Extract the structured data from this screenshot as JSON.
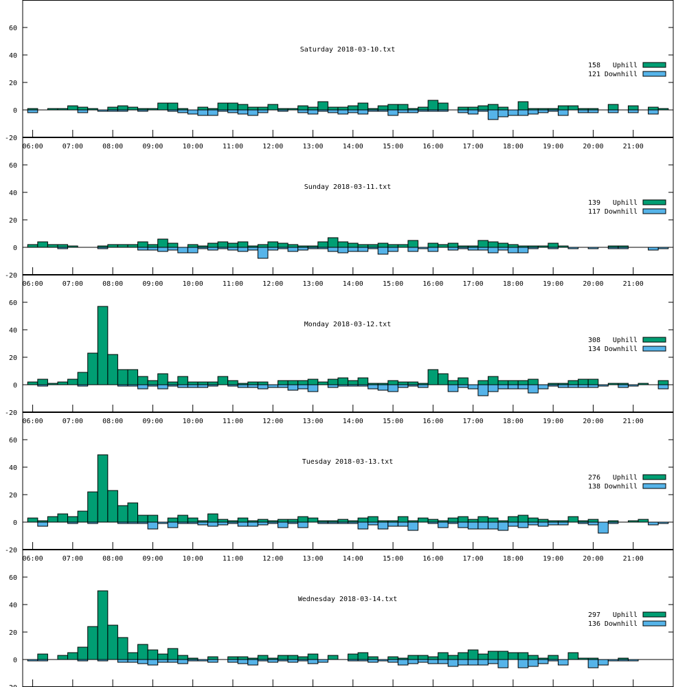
{
  "chart_data": {
    "type": "bar",
    "xlim": [
      "05:45",
      "22:00"
    ],
    "ylim": [
      -20,
      80
    ],
    "yticks": [
      -20,
      0,
      20,
      40,
      60
    ],
    "xticks": [
      "06:00",
      "07:00",
      "08:00",
      "09:00",
      "10:00",
      "11:00",
      "12:00",
      "13:00",
      "14:00",
      "15:00",
      "16:00",
      "17:00",
      "18:00",
      "19:00",
      "20:00",
      "21:00"
    ],
    "x": [
      "06:00",
      "06:15",
      "06:30",
      "06:45",
      "07:00",
      "07:15",
      "07:30",
      "07:45",
      "08:00",
      "08:15",
      "08:30",
      "08:45",
      "09:00",
      "09:15",
      "09:30",
      "09:45",
      "10:00",
      "10:15",
      "10:30",
      "10:45",
      "11:00",
      "11:15",
      "11:30",
      "11:45",
      "12:00",
      "12:15",
      "12:30",
      "12:45",
      "13:00",
      "13:15",
      "13:30",
      "13:45",
      "14:00",
      "14:15",
      "14:30",
      "14:45",
      "15:00",
      "15:15",
      "15:30",
      "15:45",
      "16:00",
      "16:15",
      "16:30",
      "16:45",
      "17:00",
      "17:15",
      "17:30",
      "17:45",
      "18:00",
      "18:15",
      "18:30",
      "18:45",
      "19:00",
      "19:15",
      "19:30",
      "19:45",
      "20:00",
      "20:15",
      "20:30",
      "20:45",
      "21:00",
      "21:15",
      "21:30",
      "21:45"
    ],
    "grid": false,
    "legend_placement": "right",
    "colors": {
      "Uphill": "#009e73",
      "Downhill": "#56b4e9"
    },
    "panels": [
      {
        "title": "Saturday 2018-03-10.txt",
        "series": [
          {
            "name": "Uphill",
            "total": "158",
            "values": [
              1,
              0,
              1,
              1,
              3,
              2,
              1,
              0,
              2,
              3,
              2,
              1,
              1,
              5,
              5,
              1,
              0,
              2,
              1,
              5,
              5,
              4,
              2,
              2,
              4,
              1,
              1,
              3,
              2,
              6,
              2,
              2,
              3,
              5,
              1,
              3,
              4,
              4,
              1,
              2,
              7,
              5,
              0,
              2,
              2,
              3,
              4,
              2,
              0,
              6,
              1,
              1,
              1,
              3,
              3,
              1,
              1,
              0,
              4,
              0,
              3,
              0,
              2,
              1
            ]
          },
          {
            "name": "Downhill",
            "total": "121",
            "values": [
              -2,
              0,
              0,
              0,
              0,
              -2,
              0,
              -1,
              -1,
              -1,
              0,
              -1,
              0,
              0,
              -1,
              -2,
              -3,
              -4,
              -4,
              -1,
              -2,
              -3,
              -4,
              -2,
              0,
              -1,
              0,
              -2,
              -3,
              -1,
              -2,
              -3,
              -2,
              -3,
              -1,
              -1,
              -4,
              -2,
              -2,
              -1,
              -1,
              -1,
              0,
              -2,
              -3,
              -1,
              -7,
              -5,
              -4,
              -4,
              -3,
              -2,
              -1,
              -4,
              0,
              -2,
              -2,
              0,
              -2,
              0,
              -2,
              0,
              -3,
              0
            ]
          }
        ]
      },
      {
        "title": "Sunday 2018-03-11.txt",
        "series": [
          {
            "name": "Uphill",
            "total": "139",
            "values": [
              2,
              4,
              2,
              2,
              1,
              0,
              0,
              1,
              2,
              2,
              2,
              4,
              2,
              6,
              3,
              0,
              2,
              1,
              3,
              4,
              3,
              4,
              1,
              2,
              4,
              3,
              2,
              1,
              1,
              4,
              7,
              4,
              3,
              2,
              2,
              3,
              2,
              2,
              5,
              0,
              3,
              2,
              3,
              1,
              1,
              5,
              4,
              3,
              2,
              1,
              1,
              1,
              3,
              1,
              0,
              0,
              0,
              0,
              1,
              1,
              0,
              0,
              0,
              0
            ]
          },
          {
            "name": "Downhill",
            "total": "117",
            "values": [
              0,
              0,
              0,
              -1,
              0,
              0,
              0,
              -1,
              0,
              0,
              0,
              -2,
              -2,
              -3,
              -2,
              -4,
              -4,
              -1,
              -2,
              -1,
              -2,
              -3,
              -2,
              -8,
              -2,
              -1,
              -3,
              -2,
              -1,
              -1,
              -3,
              -4,
              -3,
              -3,
              -1,
              -5,
              -3,
              0,
              -3,
              -1,
              -3,
              0,
              -2,
              -1,
              -2,
              -2,
              -4,
              -2,
              -4,
              -4,
              -1,
              0,
              -1,
              0,
              -1,
              0,
              -1,
              0,
              -1,
              -1,
              0,
              0,
              -2,
              -1
            ]
          }
        ]
      },
      {
        "title": "Monday 2018-03-12.txt",
        "series": [
          {
            "name": "Uphill",
            "total": "308",
            "values": [
              2,
              4,
              1,
              2,
              4,
              9,
              23,
              57,
              22,
              11,
              11,
              6,
              3,
              8,
              2,
              6,
              2,
              2,
              2,
              6,
              3,
              1,
              2,
              2,
              0,
              3,
              3,
              3,
              4,
              2,
              4,
              5,
              3,
              5,
              1,
              1,
              3,
              2,
              2,
              1,
              11,
              8,
              3,
              5,
              0,
              3,
              6,
              3,
              3,
              3,
              4,
              0,
              1,
              1,
              3,
              4,
              4,
              0,
              1,
              1,
              0,
              1,
              0,
              3
            ]
          },
          {
            "name": "Downhill",
            "total": "134",
            "values": [
              0,
              -1,
              0,
              0,
              0,
              -1,
              0,
              0,
              0,
              -1,
              -1,
              -3,
              -1,
              -3,
              -1,
              -2,
              -2,
              -2,
              -1,
              0,
              -1,
              -2,
              -2,
              -3,
              -2,
              -2,
              -4,
              -3,
              -5,
              0,
              -2,
              -1,
              -1,
              -1,
              -3,
              -4,
              -5,
              -2,
              -1,
              -2,
              0,
              0,
              -5,
              -2,
              -3,
              -8,
              -5,
              -3,
              -3,
              -3,
              -6,
              -3,
              -1,
              -2,
              -2,
              -2,
              -2,
              -1,
              0,
              -2,
              -1,
              0,
              0,
              -3
            ]
          }
        ]
      },
      {
        "title": "Tuesday 2018-03-13.txt",
        "series": [
          {
            "name": "Uphill",
            "total": "276",
            "values": [
              3,
              1,
              4,
              6,
              4,
              8,
              22,
              49,
              23,
              12,
              14,
              5,
              5,
              0,
              3,
              5,
              3,
              1,
              6,
              2,
              1,
              3,
              1,
              2,
              1,
              2,
              2,
              4,
              3,
              1,
              1,
              2,
              1,
              3,
              4,
              1,
              1,
              4,
              1,
              3,
              2,
              1,
              3,
              4,
              2,
              4,
              3,
              1,
              4,
              5,
              3,
              2,
              1,
              1,
              4,
              1,
              2,
              0,
              1,
              0,
              1,
              2,
              0,
              0
            ]
          },
          {
            "name": "Downhill",
            "total": "138",
            "values": [
              0,
              -3,
              0,
              0,
              -1,
              0,
              -1,
              0,
              0,
              -1,
              -1,
              -1,
              -5,
              -1,
              -4,
              -1,
              -1,
              -2,
              -3,
              -2,
              -1,
              -3,
              -3,
              -2,
              -1,
              -4,
              -1,
              -4,
              0,
              -1,
              -1,
              -1,
              -1,
              -5,
              -2,
              -5,
              -3,
              -3,
              -6,
              0,
              -1,
              -4,
              -1,
              -4,
              -5,
              -5,
              -5,
              -6,
              -3,
              -4,
              -2,
              -3,
              -2,
              -2,
              0,
              -1,
              -2,
              -8,
              -1,
              0,
              0,
              0,
              -2,
              -1
            ]
          }
        ]
      },
      {
        "title": "Wednesday 2018-03-14.txt",
        "series": [
          {
            "name": "Uphill",
            "total": "297",
            "values": [
              0,
              4,
              0,
              3,
              5,
              9,
              24,
              50,
              25,
              16,
              5,
              11,
              7,
              4,
              8,
              3,
              1,
              0,
              2,
              0,
              2,
              2,
              1,
              3,
              1,
              3,
              3,
              2,
              4,
              0,
              3,
              0,
              4,
              5,
              2,
              0,
              2,
              1,
              3,
              3,
              2,
              5,
              3,
              5,
              7,
              4,
              6,
              6,
              5,
              5,
              3,
              1,
              3,
              0,
              5,
              1,
              1,
              0,
              0,
              1,
              0,
              0,
              0,
              0
            ]
          },
          {
            "name": "Downhill",
            "total": "136",
            "values": [
              -1,
              -1,
              0,
              0,
              0,
              -1,
              0,
              -1,
              0,
              -2,
              -2,
              -3,
              -4,
              -2,
              -2,
              -3,
              -1,
              -1,
              -2,
              0,
              -2,
              -3,
              -4,
              -1,
              -2,
              -1,
              -2,
              -1,
              -3,
              -2,
              0,
              0,
              -1,
              -1,
              -2,
              -1,
              -2,
              -4,
              -3,
              -2,
              -3,
              -3,
              -5,
              -4,
              -4,
              -4,
              -3,
              -6,
              0,
              -6,
              -5,
              -3,
              -1,
              -4,
              0,
              0,
              -6,
              -4,
              -1,
              -1,
              -1,
              0,
              0,
              0
            ]
          }
        ]
      }
    ]
  }
}
